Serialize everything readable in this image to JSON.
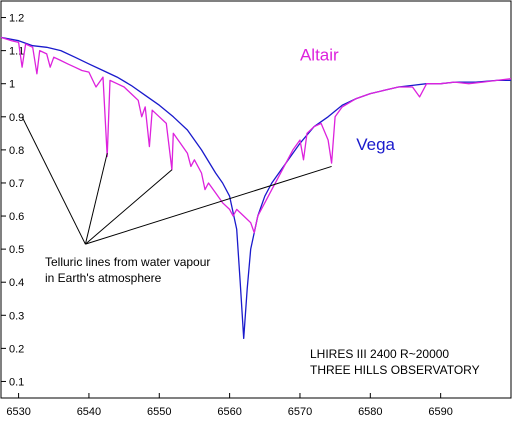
{
  "chart_data": {
    "type": "line",
    "xlim": [
      6527.5,
      6600
    ],
    "ylim": [
      0.05,
      1.25
    ],
    "x_ticks": [
      6530,
      6540,
      6550,
      6560,
      6570,
      6580,
      6590
    ],
    "y_ticks": [
      0.1,
      0.2,
      0.3,
      0.4,
      0.5,
      0.6,
      0.7,
      0.8,
      0.9,
      1,
      1.1,
      1.2
    ],
    "grid": false,
    "series": [
      {
        "name": "Vega",
        "color": "#1a1acc",
        "points": [
          [
            6527.5,
            1.14
          ],
          [
            6530,
            1.13
          ],
          [
            6532,
            1.115
          ],
          [
            6534,
            1.11
          ],
          [
            6536,
            1.1
          ],
          [
            6538,
            1.08
          ],
          [
            6540,
            1.06
          ],
          [
            6542,
            1.04
          ],
          [
            6544,
            1.02
          ],
          [
            6546,
            0.995
          ],
          [
            6548,
            0.965
          ],
          [
            6550,
            0.935
          ],
          [
            6552,
            0.9
          ],
          [
            6554,
            0.86
          ],
          [
            6556,
            0.8
          ],
          [
            6558,
            0.73
          ],
          [
            6559,
            0.7
          ],
          [
            6560,
            0.66
          ],
          [
            6561,
            0.56
          ],
          [
            6561.5,
            0.4
          ],
          [
            6562,
            0.23
          ],
          [
            6562.5,
            0.38
          ],
          [
            6563,
            0.5
          ],
          [
            6564,
            0.6
          ],
          [
            6565,
            0.66
          ],
          [
            6566,
            0.7
          ],
          [
            6568,
            0.76
          ],
          [
            6570,
            0.82
          ],
          [
            6572,
            0.87
          ],
          [
            6574,
            0.9
          ],
          [
            6576,
            0.935
          ],
          [
            6578,
            0.955
          ],
          [
            6580,
            0.97
          ],
          [
            6582,
            0.98
          ],
          [
            6584,
            0.99
          ],
          [
            6586,
            0.995
          ],
          [
            6588,
            1.0
          ],
          [
            6590,
            1.0
          ],
          [
            6592,
            1.005
          ],
          [
            6595,
            1.005
          ],
          [
            6598,
            1.01
          ],
          [
            6600,
            1.01
          ]
        ]
      },
      {
        "name": "Altair",
        "color": "#dd22dd",
        "points": [
          [
            6527.5,
            1.14
          ],
          [
            6529,
            1.13
          ],
          [
            6530,
            1.125
          ],
          [
            6530.5,
            1.05
          ],
          [
            6531,
            1.12
          ],
          [
            6532,
            1.11
          ],
          [
            6532.6,
            1.03
          ],
          [
            6533,
            1.1
          ],
          [
            6534,
            1.09
          ],
          [
            6534.5,
            1.05
          ],
          [
            6535,
            1.08
          ],
          [
            6536,
            1.07
          ],
          [
            6537,
            1.06
          ],
          [
            6538,
            1.05
          ],
          [
            6539,
            1.04
          ],
          [
            6540,
            1.035
          ],
          [
            6541,
            0.99
          ],
          [
            6542,
            1.02
          ],
          [
            6542.6,
            0.78
          ],
          [
            6543,
            1.01
          ],
          [
            6544,
            1.0
          ],
          [
            6545,
            0.99
          ],
          [
            6546,
            0.97
          ],
          [
            6547,
            0.95
          ],
          [
            6547.5,
            0.9
          ],
          [
            6548,
            0.93
          ],
          [
            6548.6,
            0.81
          ],
          [
            6549,
            0.92
          ],
          [
            6550,
            0.9
          ],
          [
            6551,
            0.88
          ],
          [
            6551.8,
            0.74
          ],
          [
            6552,
            0.85
          ],
          [
            6553,
            0.82
          ],
          [
            6554,
            0.79
          ],
          [
            6554.5,
            0.75
          ],
          [
            6555,
            0.77
          ],
          [
            6556,
            0.73
          ],
          [
            6556.5,
            0.68
          ],
          [
            6557,
            0.7
          ],
          [
            6558,
            0.67
          ],
          [
            6559,
            0.64
          ],
          [
            6560,
            0.62
          ],
          [
            6560.5,
            0.6
          ],
          [
            6561,
            0.62
          ],
          [
            6562,
            0.6
          ],
          [
            6563,
            0.58
          ],
          [
            6563.5,
            0.55
          ],
          [
            6564,
            0.6
          ],
          [
            6565,
            0.64
          ],
          [
            6566,
            0.68
          ],
          [
            6567,
            0.72
          ],
          [
            6568,
            0.76
          ],
          [
            6569,
            0.8
          ],
          [
            6570,
            0.83
          ],
          [
            6570.5,
            0.77
          ],
          [
            6571,
            0.85
          ],
          [
            6572,
            0.87
          ],
          [
            6573,
            0.88
          ],
          [
            6574,
            0.83
          ],
          [
            6574.5,
            0.76
          ],
          [
            6575,
            0.9
          ],
          [
            6576,
            0.93
          ],
          [
            6578,
            0.955
          ],
          [
            6580,
            0.97
          ],
          [
            6582,
            0.98
          ],
          [
            6584,
            0.99
          ],
          [
            6586,
            0.99
          ],
          [
            6587,
            0.96
          ],
          [
            6588,
            1.0
          ],
          [
            6590,
            1.0
          ],
          [
            6592,
            1.005
          ],
          [
            6594,
            1.0
          ],
          [
            6596,
            1.005
          ],
          [
            6598,
            1.01
          ],
          [
            6600,
            1.015
          ]
        ]
      }
    ],
    "series_labels": [
      {
        "text": "Altair",
        "color": "#dd22dd",
        "x": 6570,
        "y": 1.07
      },
      {
        "text": "Vega",
        "color": "#1a1acc",
        "x": 6578,
        "y": 0.8
      }
    ],
    "annotation": {
      "lines": [
        "Telluric lines from water vapour",
        "in Earth's atmosphere"
      ],
      "anchor": [
        6539.5,
        0.515
      ],
      "targets": [
        [
          6530.5,
          0.9
        ],
        [
          6542.6,
          0.79
        ],
        [
          6551.8,
          0.74
        ],
        [
          6574.5,
          0.75
        ]
      ]
    },
    "info_text": [
      "LHIRES III  2400  R~20000",
      "THREE HILLS OBSERVATORY"
    ]
  }
}
